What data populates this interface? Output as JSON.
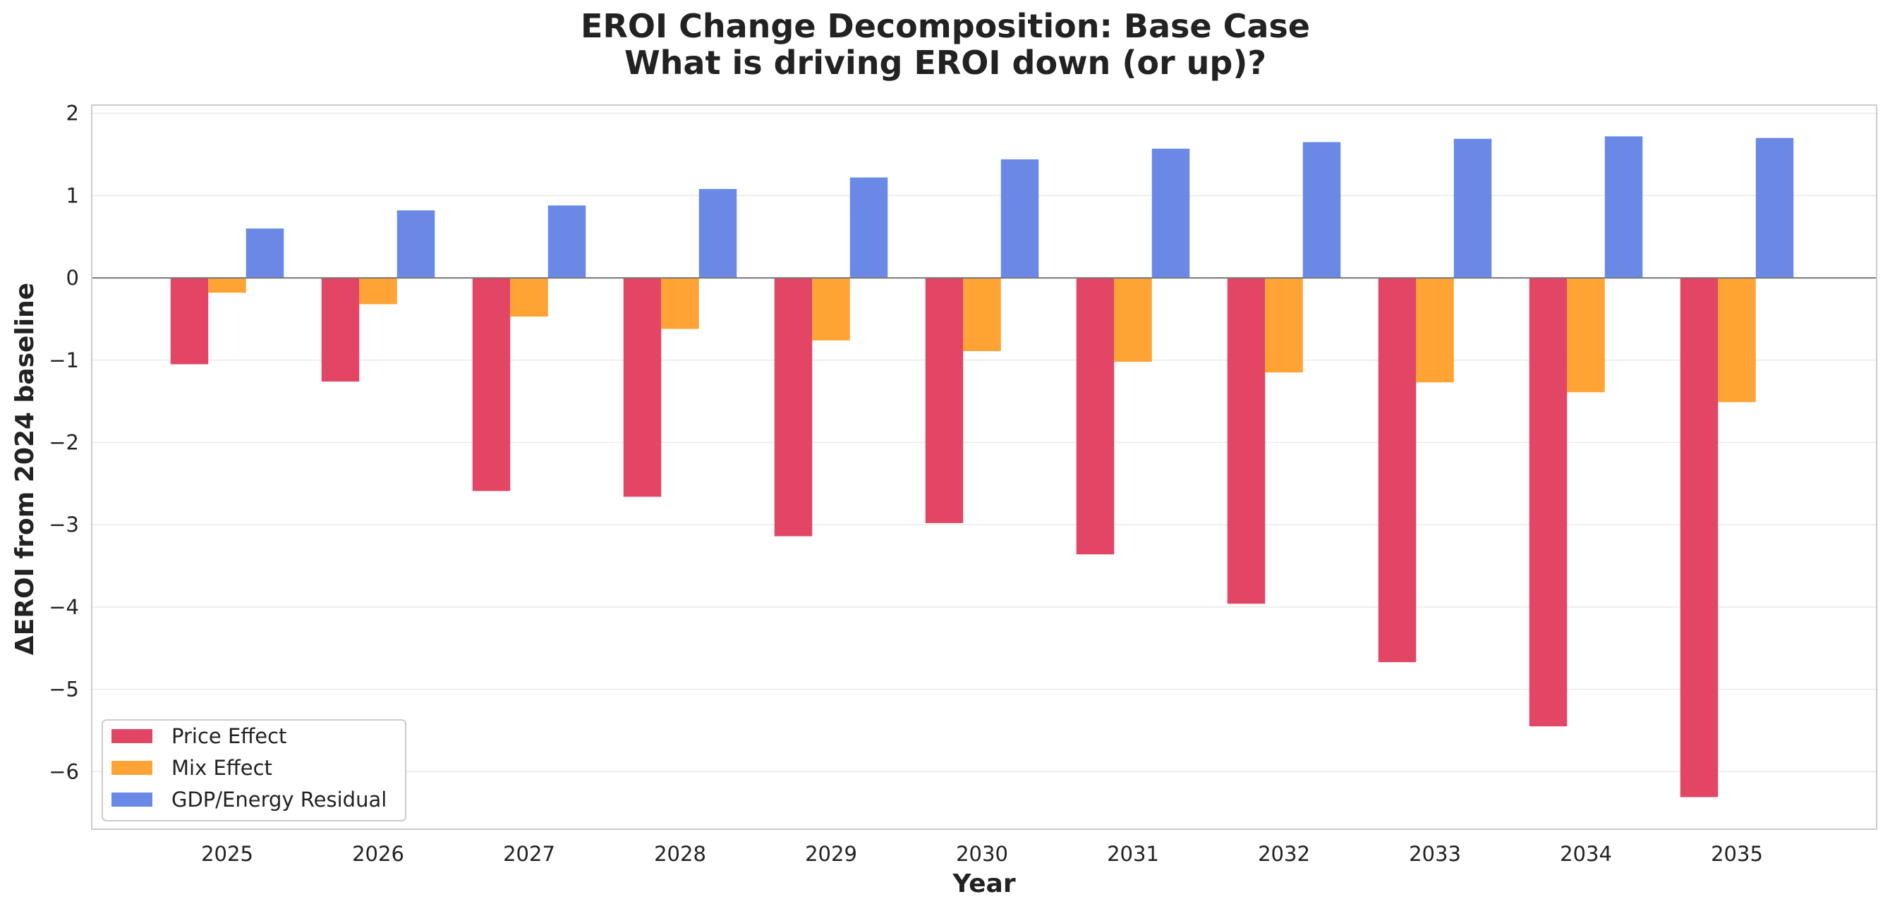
{
  "chart_data": {
    "type": "bar",
    "title": "EROI Change Decomposition: Base Case",
    "subtitle": "What is driving EROI down (or up)?",
    "xlabel": "Year",
    "ylabel": "ΔEROI from 2024 baseline",
    "categories": [
      "2025",
      "2026",
      "2027",
      "2028",
      "2029",
      "2030",
      "2031",
      "2032",
      "2033",
      "2034",
      "2035"
    ],
    "ylim": [
      -6.7,
      2.1
    ],
    "yticks": [
      2,
      1,
      0,
      -1,
      -2,
      -3,
      -4,
      -5,
      -6
    ],
    "ytick_labels": [
      "2",
      "1",
      "0",
      "−1",
      "−2",
      "−3",
      "−4",
      "−5",
      "−6"
    ],
    "grid": true,
    "legend_position": "lower-left",
    "series": [
      {
        "name": "Price Effect",
        "color": "#E34564",
        "values": [
          -1.05,
          -1.26,
          -2.59,
          -2.66,
          -3.14,
          -2.98,
          -3.36,
          -3.96,
          -4.67,
          -5.45,
          -6.31
        ]
      },
      {
        "name": "Mix Effect",
        "color": "#FFA335",
        "values": [
          -0.18,
          -0.32,
          -0.47,
          -0.62,
          -0.76,
          -0.89,
          -1.02,
          -1.15,
          -1.27,
          -1.39,
          -1.51
        ]
      },
      {
        "name": "GDP/Energy Residual",
        "color": "#6A89E6",
        "values": [
          0.6,
          0.82,
          0.88,
          1.08,
          1.22,
          1.44,
          1.57,
          1.65,
          1.69,
          1.72,
          1.7
        ]
      }
    ]
  }
}
